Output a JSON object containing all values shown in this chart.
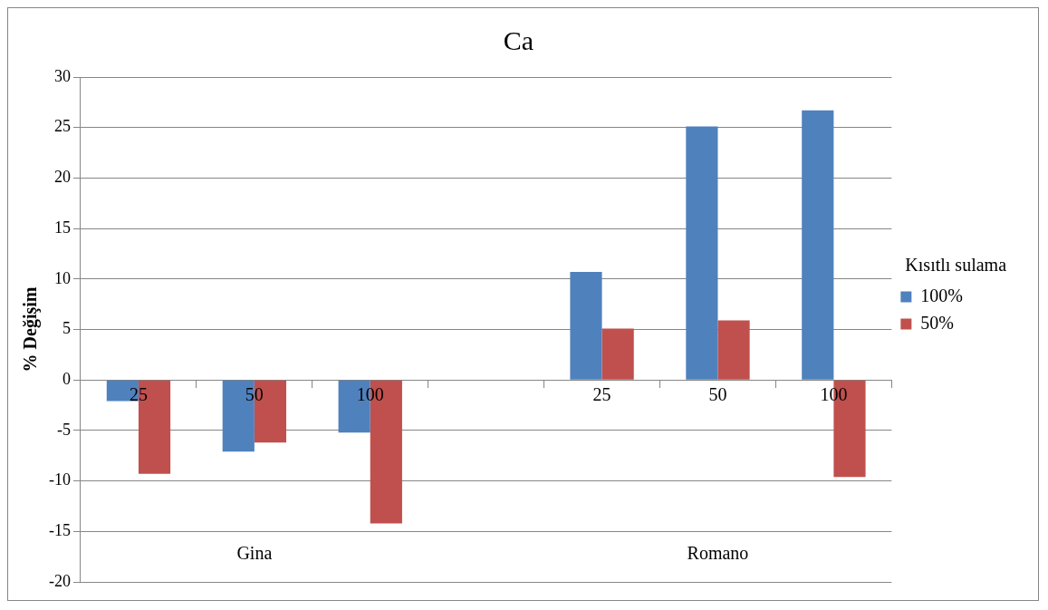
{
  "chart_data": {
    "type": "bar",
    "title": "Ca",
    "ylabel": "% Değişim",
    "legend_title": "Kısıtlı sulama",
    "categories": [
      "25",
      "50",
      "100",
      null,
      "25",
      "50",
      "100"
    ],
    "series": [
      {
        "name": "100%",
        "color": "#4f81bd",
        "values": [
          -2.1,
          -7.1,
          -5.2,
          null,
          10.7,
          25.1,
          26.7
        ]
      },
      {
        "name": "50%",
        "color": "#c0504d",
        "values": [
          -9.3,
          -6.2,
          -14.2,
          null,
          5.1,
          5.9,
          -9.6
        ]
      }
    ],
    "ylim": [
      -20,
      30
    ],
    "yticks": [
      -20,
      -15,
      -10,
      -5,
      0,
      5,
      10,
      15,
      20,
      25,
      30
    ],
    "grid": "y",
    "legend": "right",
    "annotations": [
      "Gina",
      "Romano"
    ]
  }
}
